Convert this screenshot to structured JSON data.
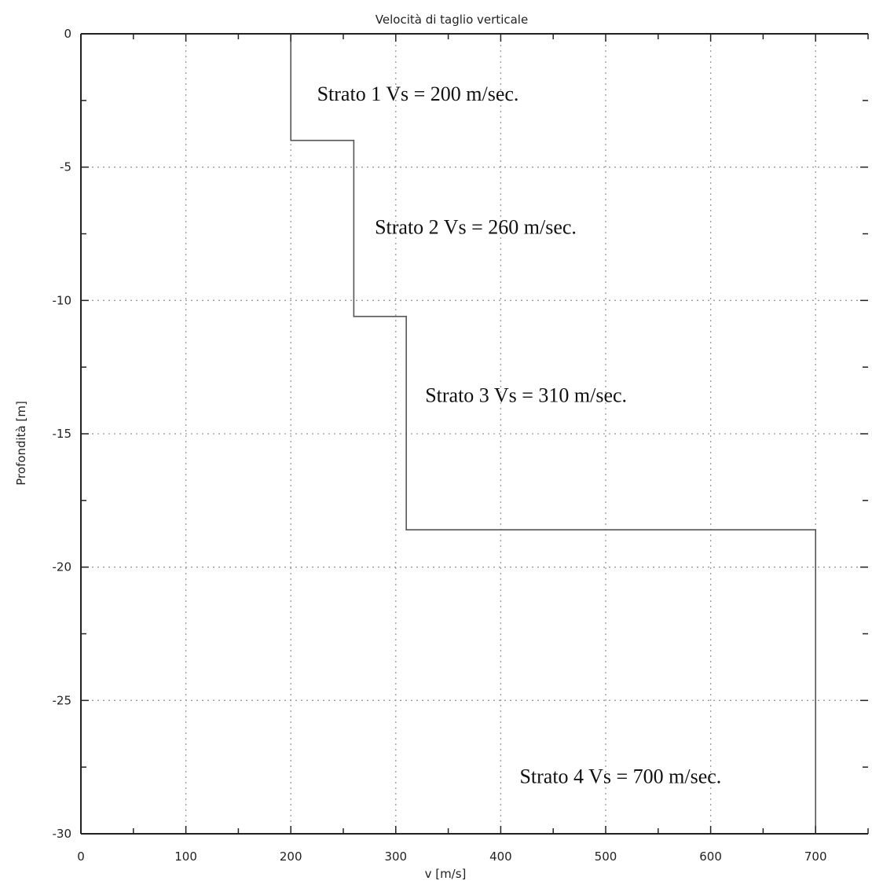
{
  "chart_data": {
    "type": "line",
    "title": "Velocità di taglio verticale",
    "xlabel": "v [m/s]",
    "ylabel": "Profondità [m]",
    "xlim": [
      0,
      750
    ],
    "ylim": [
      -30,
      0
    ],
    "x_ticks": [
      0,
      100,
      200,
      300,
      400,
      500,
      600,
      700
    ],
    "y_ticks": [
      0,
      -5,
      -10,
      -15,
      -20,
      -25,
      -30
    ],
    "grid": true,
    "series": [
      {
        "points": [
          [
            200,
            0
          ],
          [
            200,
            -4
          ],
          [
            260,
            -4
          ],
          [
            260,
            -10.6
          ],
          [
            310,
            -10.6
          ],
          [
            310,
            -18.6
          ],
          [
            700,
            -18.6
          ],
          [
            700,
            -30
          ]
        ]
      }
    ],
    "annotations": [
      {
        "text": "Strato 1 Vs = 200 m/sec.",
        "x": 225,
        "y": -2.5
      },
      {
        "text": "Strato 2 Vs = 260 m/sec.",
        "x": 280,
        "y": -7.5
      },
      {
        "text": "Strato 3 Vs = 310 m/sec.",
        "x": 328,
        "y": -13.8
      },
      {
        "text": "Strato 4 Vs = 700 m/sec.",
        "x": 418,
        "y": -28.1
      }
    ],
    "colors": {
      "series": "#555555",
      "grid": "#9a9a9a",
      "axis": "#222222"
    }
  }
}
